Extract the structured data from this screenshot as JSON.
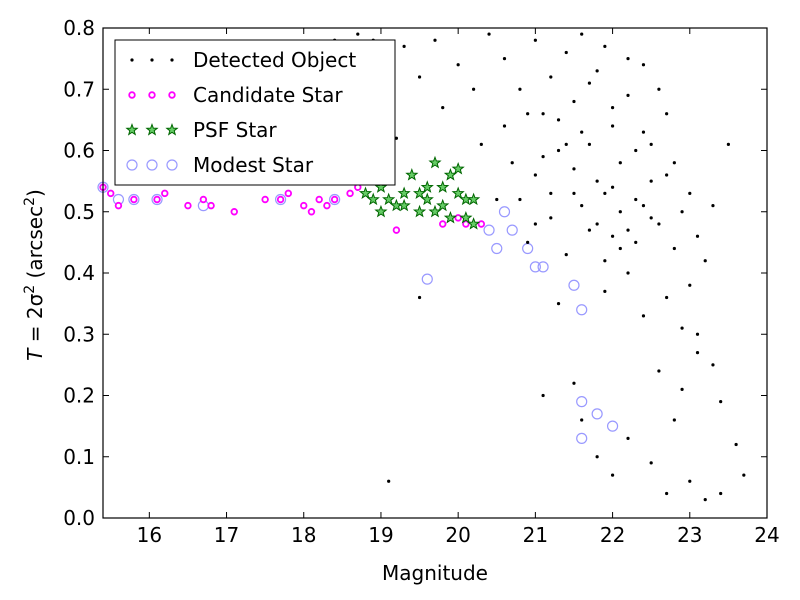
{
  "chart_data": {
    "type": "scatter",
    "xlabel": "Magnitude",
    "ylabel_parts": {
      "lhs": "T",
      "eq": " = 2σ",
      "sup": "2",
      "unit": " (arcsec",
      "unit_sup": "2",
      "close": ")"
    },
    "xlim": [
      15.4,
      24.0
    ],
    "ylim": [
      0.0,
      0.8
    ],
    "xticks": [
      "16",
      "17",
      "18",
      "19",
      "20",
      "21",
      "22",
      "23",
      "24"
    ],
    "yticks": [
      "0.0",
      "0.1",
      "0.2",
      "0.3",
      "0.4",
      "0.5",
      "0.6",
      "0.7",
      "0.8"
    ],
    "grid": false,
    "legend_position": "top-left",
    "series": [
      {
        "name": "Detected Object",
        "marker": "dot",
        "color": "#000000",
        "points": [
          [
            20.4,
            0.79
          ],
          [
            20.6,
            0.75
          ],
          [
            20.8,
            0.7
          ],
          [
            21.0,
            0.78
          ],
          [
            21.1,
            0.66
          ],
          [
            21.2,
            0.72
          ],
          [
            21.3,
            0.6
          ],
          [
            21.4,
            0.76
          ],
          [
            21.5,
            0.68
          ],
          [
            21.6,
            0.63
          ],
          [
            21.7,
            0.71
          ],
          [
            21.8,
            0.55
          ],
          [
            21.9,
            0.77
          ],
          [
            22.0,
            0.64
          ],
          [
            22.1,
            0.58
          ],
          [
            22.2,
            0.69
          ],
          [
            22.3,
            0.52
          ],
          [
            22.4,
            0.74
          ],
          [
            22.5,
            0.61
          ],
          [
            22.6,
            0.48
          ],
          [
            22.7,
            0.56
          ],
          [
            22.8,
            0.44
          ],
          [
            22.9,
            0.5
          ],
          [
            23.0,
            0.38
          ],
          [
            23.1,
            0.3
          ],
          [
            23.2,
            0.42
          ],
          [
            23.3,
            0.25
          ],
          [
            23.4,
            0.19
          ],
          [
            23.5,
            0.61
          ],
          [
            23.6,
            0.12
          ],
          [
            23.7,
            0.07
          ],
          [
            23.3,
            0.51
          ],
          [
            21.1,
            0.2
          ],
          [
            21.3,
            0.35
          ],
          [
            21.5,
            0.22
          ],
          [
            21.6,
            0.16
          ],
          [
            21.8,
            0.1
          ],
          [
            22.0,
            0.07
          ],
          [
            22.2,
            0.13
          ],
          [
            22.5,
            0.09
          ],
          [
            22.7,
            0.04
          ],
          [
            23.0,
            0.06
          ],
          [
            23.2,
            0.03
          ],
          [
            23.4,
            0.04
          ],
          [
            22.8,
            0.16
          ],
          [
            22.6,
            0.24
          ],
          [
            22.9,
            0.21
          ],
          [
            23.1,
            0.27
          ],
          [
            22.4,
            0.33
          ],
          [
            22.2,
            0.4
          ],
          [
            22.0,
            0.46
          ],
          [
            21.9,
            0.37
          ],
          [
            19.5,
            0.36
          ],
          [
            19.1,
            0.06
          ],
          [
            20.9,
            0.66
          ],
          [
            20.7,
            0.58
          ],
          [
            20.5,
            0.52
          ],
          [
            20.3,
            0.61
          ],
          [
            20.2,
            0.7
          ],
          [
            20.0,
            0.74
          ],
          [
            19.8,
            0.67
          ],
          [
            19.7,
            0.78
          ],
          [
            19.5,
            0.72
          ],
          [
            19.3,
            0.77
          ],
          [
            19.2,
            0.62
          ],
          [
            18.9,
            0.78
          ],
          [
            18.8,
            0.71
          ],
          [
            18.7,
            0.79
          ],
          [
            18.4,
            0.78
          ],
          [
            21.0,
            0.56
          ],
          [
            21.2,
            0.49
          ],
          [
            21.4,
            0.43
          ],
          [
            21.5,
            0.53
          ],
          [
            21.7,
            0.47
          ],
          [
            21.9,
            0.42
          ],
          [
            22.1,
            0.5
          ],
          [
            22.3,
            0.45
          ],
          [
            22.5,
            0.55
          ],
          [
            22.7,
            0.36
          ],
          [
            22.9,
            0.31
          ],
          [
            23.1,
            0.46
          ],
          [
            21.6,
            0.79
          ],
          [
            21.8,
            0.73
          ],
          [
            22.0,
            0.67
          ],
          [
            22.2,
            0.75
          ],
          [
            22.4,
            0.63
          ],
          [
            22.6,
            0.7
          ],
          [
            22.8,
            0.58
          ],
          [
            23.0,
            0.53
          ],
          [
            21.3,
            0.65
          ],
          [
            21.1,
            0.59
          ],
          [
            20.9,
            0.45
          ],
          [
            21.5,
            0.57
          ],
          [
            21.7,
            0.61
          ],
          [
            21.9,
            0.53
          ],
          [
            22.1,
            0.44
          ],
          [
            22.3,
            0.6
          ],
          [
            22.5,
            0.49
          ],
          [
            22.7,
            0.66
          ],
          [
            20.6,
            0.64
          ],
          [
            20.8,
            0.52
          ],
          [
            21.0,
            0.48
          ],
          [
            21.2,
            0.53
          ],
          [
            21.4,
            0.61
          ],
          [
            21.6,
            0.51
          ],
          [
            21.8,
            0.48
          ],
          [
            22.0,
            0.54
          ],
          [
            22.2,
            0.47
          ],
          [
            22.4,
            0.51
          ]
        ]
      },
      {
        "name": "Candidate Star",
        "marker": "circle-small",
        "color": "#ff00ff",
        "points": [
          [
            15.4,
            0.54
          ],
          [
            15.5,
            0.53
          ],
          [
            15.6,
            0.51
          ],
          [
            15.8,
            0.52
          ],
          [
            16.1,
            0.52
          ],
          [
            16.2,
            0.53
          ],
          [
            16.5,
            0.51
          ],
          [
            16.7,
            0.52
          ],
          [
            16.8,
            0.51
          ],
          [
            17.1,
            0.5
          ],
          [
            17.5,
            0.52
          ],
          [
            17.7,
            0.52
          ],
          [
            17.8,
            0.53
          ],
          [
            18.0,
            0.51
          ],
          [
            18.1,
            0.5
          ],
          [
            18.2,
            0.52
          ],
          [
            18.3,
            0.51
          ],
          [
            18.4,
            0.52
          ],
          [
            18.6,
            0.53
          ],
          [
            18.7,
            0.54
          ],
          [
            19.2,
            0.47
          ],
          [
            19.8,
            0.48
          ],
          [
            20.0,
            0.49
          ],
          [
            20.1,
            0.48
          ],
          [
            20.3,
            0.48
          ]
        ]
      },
      {
        "name": "PSF Star",
        "marker": "star",
        "color": "#00aa00",
        "points": [
          [
            18.9,
            0.52
          ],
          [
            19.0,
            0.5
          ],
          [
            19.1,
            0.52
          ],
          [
            19.2,
            0.51
          ],
          [
            19.3,
            0.53
          ],
          [
            19.4,
            0.56
          ],
          [
            19.5,
            0.5
          ],
          [
            19.6,
            0.52
          ],
          [
            19.6,
            0.54
          ],
          [
            19.7,
            0.58
          ],
          [
            19.7,
            0.5
          ],
          [
            19.8,
            0.54
          ],
          [
            19.8,
            0.51
          ],
          [
            19.9,
            0.56
          ],
          [
            19.9,
            0.49
          ],
          [
            20.0,
            0.53
          ],
          [
            20.0,
            0.57
          ],
          [
            20.1,
            0.52
          ],
          [
            20.1,
            0.49
          ],
          [
            20.2,
            0.48
          ],
          [
            20.2,
            0.52
          ],
          [
            19.5,
            0.53
          ],
          [
            19.3,
            0.51
          ],
          [
            19.0,
            0.54
          ],
          [
            18.8,
            0.53
          ]
        ]
      },
      {
        "name": "Modest Star",
        "marker": "open-circle",
        "color": "#9999ff",
        "points": [
          [
            15.4,
            0.54
          ],
          [
            15.6,
            0.52
          ],
          [
            15.8,
            0.52
          ],
          [
            16.1,
            0.52
          ],
          [
            16.7,
            0.51
          ],
          [
            17.7,
            0.52
          ],
          [
            18.4,
            0.52
          ],
          [
            19.6,
            0.39
          ],
          [
            20.4,
            0.47
          ],
          [
            20.5,
            0.44
          ],
          [
            20.6,
            0.5
          ],
          [
            20.7,
            0.47
          ],
          [
            20.9,
            0.44
          ],
          [
            21.0,
            0.41
          ],
          [
            21.1,
            0.41
          ],
          [
            21.5,
            0.38
          ],
          [
            21.6,
            0.34
          ],
          [
            21.6,
            0.19
          ],
          [
            21.6,
            0.13
          ],
          [
            21.8,
            0.17
          ],
          [
            22.0,
            0.15
          ]
        ]
      }
    ]
  }
}
